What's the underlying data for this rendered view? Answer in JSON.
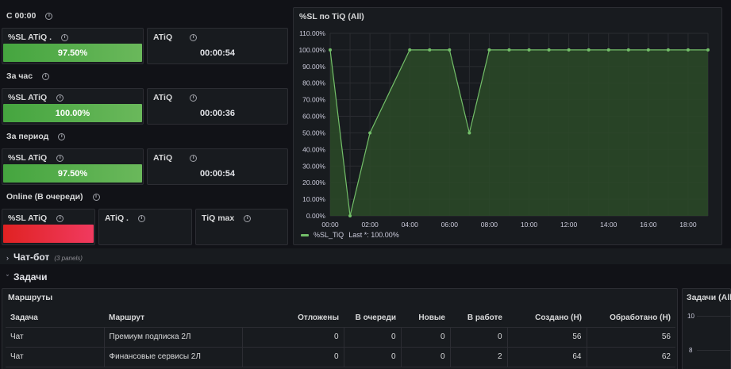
{
  "sections": {
    "s1": "С 00:00",
    "s2": "За час",
    "s3": "За период",
    "s4": "Online (В очереди)"
  },
  "stats": {
    "p1_sl_title": "%SL ATiQ .",
    "p1_sl_value": "97.50%",
    "p1_atiq_title": "ATiQ",
    "p1_atiq_value": "00:00:54",
    "p2_sl_title": "%SL ATiQ",
    "p2_sl_value": "100.00%",
    "p2_atiq_title": "ATiQ",
    "p2_atiq_value": "00:00:36",
    "p3_sl_title": "%SL ATiQ",
    "p3_sl_value": "97.50%",
    "p3_atiq_title": "ATiQ",
    "p3_atiq_value": "00:00:54",
    "p4_sl_title": "%SL ATiQ",
    "p4_atiq_title": "ATiQ .",
    "p4_tiq_title": "TiQ max"
  },
  "chart_panel": {
    "title": "%SL по TiQ (All)",
    "legend_name": "%SL_TiQ",
    "legend_last": "Last *: 100.00%"
  },
  "chart_data": {
    "type": "area",
    "title": "%SL по TiQ (All)",
    "xlabel": "",
    "ylabel": "",
    "x": [
      "00:00",
      "01:00",
      "02:00",
      "03:00",
      "04:00",
      "05:00",
      "06:00",
      "07:00",
      "08:00",
      "09:00",
      "10:00",
      "11:00",
      "12:00",
      "13:00",
      "14:00",
      "15:00",
      "16:00",
      "17:00",
      "18:00",
      "19:00"
    ],
    "series": [
      {
        "name": "%SL_TiQ",
        "values": [
          100,
          0,
          50,
          75,
          100,
          100,
          100,
          50,
          100,
          100,
          100,
          100,
          100,
          100,
          100,
          100,
          100,
          100,
          100,
          100
        ]
      }
    ],
    "point_markers": [
      true,
      true,
      true,
      false,
      true,
      true,
      true,
      true,
      true,
      true,
      true,
      true,
      true,
      true,
      true,
      true,
      true,
      true,
      true,
      true
    ],
    "ylim": [
      0,
      110
    ],
    "yticks": [
      "0.00%",
      "10.00%",
      "20.00%",
      "30.00%",
      "40.00%",
      "50.00%",
      "60.00%",
      "70.00%",
      "80.00%",
      "90.00%",
      "100.00%",
      "110.00%"
    ],
    "xticks": [
      "00:00",
      "02:00",
      "04:00",
      "06:00",
      "08:00",
      "10:00",
      "12:00",
      "14:00",
      "16:00",
      "18:00"
    ],
    "grid": true,
    "legend": "bottom-left",
    "line_color": "#73bf69",
    "fill_color": "#2b4a28"
  },
  "rows": {
    "chatbot": "Чат-бот",
    "chatbot_count": "(3 panels)",
    "tasks": "Задачи"
  },
  "routes": {
    "title": "Маршруты",
    "columns": [
      "Задача",
      "Маршрут",
      "Отложены",
      "В очереди",
      "Новые",
      "В работе",
      "Создано (Н)",
      "Обработано (Н)"
    ],
    "rows": [
      [
        "Чат",
        "Премиум подписка 2Л",
        "0",
        "0",
        "0",
        "0",
        "56",
        "56"
      ],
      [
        "Чат",
        "Финансовые сервисы 2Л",
        "0",
        "0",
        "0",
        "2",
        "64",
        "62"
      ]
    ]
  },
  "tasks_mini": {
    "title": "Задачи (All)",
    "yticks": [
      "10",
      "8"
    ]
  },
  "colors": {
    "bg": "#111217",
    "panel": "#181b1f",
    "border": "#2c2d33",
    "green": "#73bf69",
    "red": "#f2495c"
  }
}
